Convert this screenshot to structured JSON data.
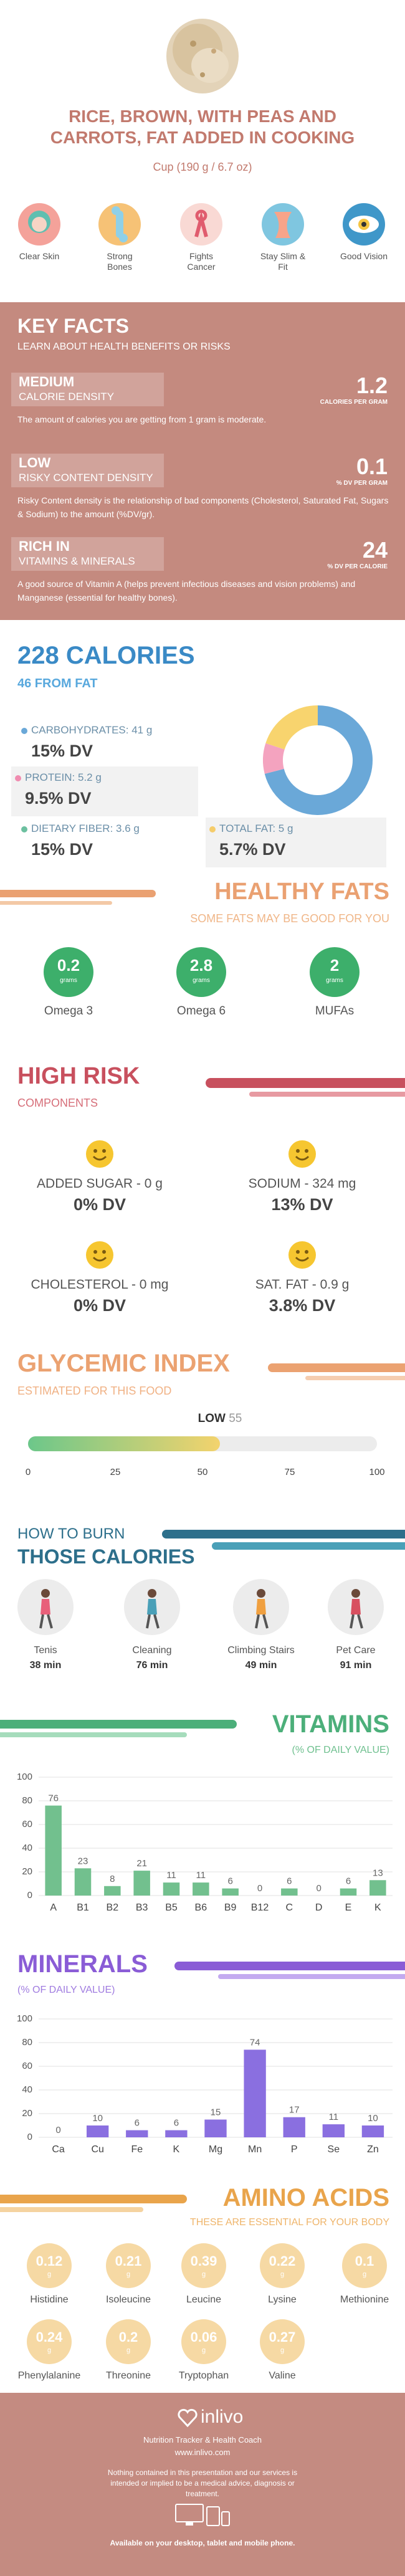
{
  "header": {
    "title": "RICE, BROWN, WITH PEAS AND CARROTS, FAT ADDED IN COOKING",
    "serving": "Cup (190 g / 6.7 oz)"
  },
  "benefits": [
    "Clear Skin",
    "Strong Bones",
    "Fights Cancer",
    "Stay Slim & Fit",
    "Good Vision"
  ],
  "key_facts": {
    "title": "KEY FACTS",
    "subtitle": "LEARN ABOUT HEALTH BENEFITS OR RISKS",
    "items": [
      {
        "level": "MEDIUM",
        "label": "CALORIE DENSITY",
        "value": 1.2,
        "unit": "CALORIES PER GRAM",
        "text": "The amount of calories you are getting from 1 gram is moderate."
      },
      {
        "level": "LOW",
        "label": "RISKY CONTENT DENSITY",
        "value": 0.1,
        "unit": "% DV PER GRAM",
        "text": "Risky Content density is the relationship of bad components (Cholesterol, Saturated Fat, Sugars & Sodium) to the amount (%DV/gr)."
      },
      {
        "level": "RICH IN",
        "label": "VITAMINS & MINERALS",
        "value": 24,
        "unit": "% DV PER CALORIE",
        "text": "A good source of Vitamin A (helps prevent infectious diseases and vision problems) and Manganese (essential for healthy bones)."
      }
    ]
  },
  "calories": {
    "title": "228 CALORIES",
    "subtitle": "46 FROM FAT",
    "nutrients": [
      {
        "name": "CARBOHYDRATES: 41 g",
        "dv": "15% DV",
        "color": "#6aa8d8"
      },
      {
        "name": "PROTEIN: 5.2 g",
        "dv": "9.5% DV",
        "color": "#f08cb0"
      },
      {
        "name": "DIETARY FIBER: 3.6 g",
        "dv": "15% DV",
        "color": "#6cc0a0"
      },
      {
        "name": "TOTAL FAT: 5 g",
        "dv": "5.7% DV",
        "color": "#f5cc6a"
      }
    ]
  },
  "healthy_fats": {
    "title": "HEALTHY FATS",
    "subtitle": "SOME FATS MAY BE GOOD FOR YOU",
    "unit": "grams",
    "items": [
      {
        "name": "Omega 3",
        "value": 0.2
      },
      {
        "name": "Omega 6",
        "value": 2.8
      },
      {
        "name": "MUFAs",
        "value": 2
      }
    ]
  },
  "high_risk": {
    "title": "HIGH RISK",
    "subtitle": "COMPONENTS",
    "items": [
      {
        "name": "ADDED SUGAR - 0 g",
        "dv": "0% DV"
      },
      {
        "name": "SODIUM - 324 mg",
        "dv": "13% DV"
      },
      {
        "name": "CHOLESTEROL - 0 mg",
        "dv": "0% DV"
      },
      {
        "name": "SAT. FAT - 0.9 g",
        "dv": "3.8% DV"
      }
    ]
  },
  "glycemic_index": {
    "title": "GLYCEMIC INDEX",
    "subtitle": "ESTIMATED FOR THIS FOOD",
    "level": "LOW",
    "value": 55,
    "xlim": [
      0,
      100
    ],
    "xticks": [
      0,
      25,
      50,
      75,
      100
    ]
  },
  "burn": {
    "title": "HOW TO BURN",
    "subtitle": "THOSE CALORIES",
    "items": [
      {
        "name": "Tenis",
        "time": "38 min"
      },
      {
        "name": "Cleaning",
        "time": "76 min"
      },
      {
        "name": "Climbing Stairs",
        "time": "49 min"
      },
      {
        "name": "Pet Care",
        "time": "91 min"
      }
    ]
  },
  "chart_data": [
    {
      "type": "pie",
      "values": [
        71,
        9,
        20
      ],
      "colors": [
        "#6aa8d8",
        "#f4a3bf",
        "#f8d46e"
      ]
    },
    {
      "type": "bar",
      "title": "VITAMINS",
      "subtitle": "(% OF DAILY VALUE)",
      "categories": [
        "A",
        "B1",
        "B2",
        "B3",
        "B5",
        "B6",
        "B9",
        "B12",
        "C",
        "D",
        "E",
        "K"
      ],
      "values": [
        76,
        23,
        8,
        21,
        11,
        11,
        6,
        0,
        6,
        0,
        6,
        13
      ],
      "color": "#72c08e",
      "ylim": [
        0,
        100
      ],
      "yticks": [
        0,
        20,
        40,
        60,
        80,
        100
      ],
      "grid": true
    },
    {
      "type": "bar",
      "title": "MINERALS",
      "subtitle": "(% OF DAILY VALUE)",
      "categories": [
        "Ca",
        "Cu",
        "Fe",
        "K",
        "Mg",
        "Mn",
        "P",
        "Se",
        "Zn"
      ],
      "values": [
        0,
        10,
        6,
        6,
        15,
        74,
        17,
        11,
        10
      ],
      "color": "#8a6fe0",
      "ylim": [
        0,
        100
      ],
      "yticks": [
        0,
        20,
        40,
        60,
        80,
        100
      ],
      "grid": true
    }
  ],
  "amino_acids": {
    "title": "AMINO ACIDS",
    "subtitle": "THESE ARE ESSENTIAL FOR YOUR BODY",
    "unit": "g",
    "items": [
      {
        "name": "Histidine",
        "value": 0.12
      },
      {
        "name": "Isoleucine",
        "value": 0.21
      },
      {
        "name": "Leucine",
        "value": 0.39
      },
      {
        "name": "Lysine",
        "value": 0.22
      },
      {
        "name": "Methionine",
        "value": 0.1
      },
      {
        "name": "Phenylalanine",
        "value": 0.24
      },
      {
        "name": "Threonine",
        "value": 0.2
      },
      {
        "name": "Tryptophan",
        "value": 0.06
      },
      {
        "name": "Valine",
        "value": 0.27
      }
    ]
  },
  "footer": {
    "brand": "inlivo",
    "tagline": "Nutrition Tracker & Health Coach",
    "url": "www.inlivo.com",
    "disclaimer": "Nothing contained in this presentation and our services is intended or implied to be a medical advice, diagnosis or treatment.",
    "available": "Available on your desktop, tablet and mobile phone."
  }
}
